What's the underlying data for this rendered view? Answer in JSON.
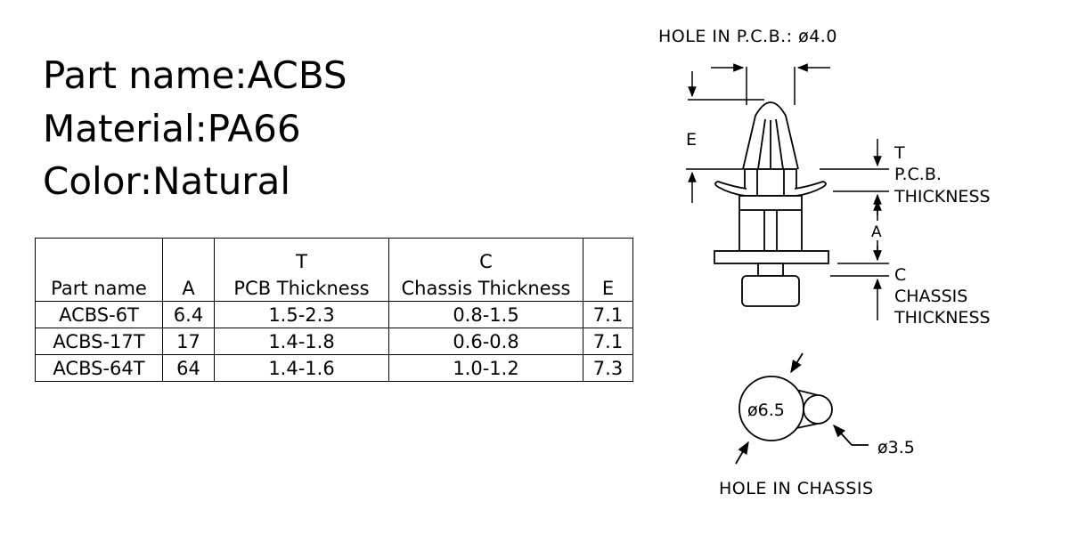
{
  "spec": {
    "part_name": "Part name:ACBS",
    "material": "Material:PA66",
    "color": "Color:Natural"
  },
  "table": {
    "headers": [
      {
        "top": "",
        "label": "Part name"
      },
      {
        "top": "",
        "label": "A"
      },
      {
        "top": "T",
        "label": "PCB Thickness"
      },
      {
        "top": "C",
        "label": "Chassis Thickness"
      },
      {
        "top": "",
        "label": "E"
      }
    ],
    "rows": [
      [
        "ACBS-6T",
        "6.4",
        "1.5-2.3",
        "0.8-1.5",
        "7.1"
      ],
      [
        "ACBS-17T",
        "17",
        "1.4-1.8",
        "0.6-0.8",
        "7.1"
      ],
      [
        "ACBS-64T",
        "64",
        "1.4-1.6",
        "1.0-1.2",
        "7.3"
      ]
    ]
  },
  "drawing": {
    "hole_pcb": "HOLE  IN  P.C.B.:  ø4.0",
    "label_e": "E",
    "label_t": "T",
    "pcb_thickness_1": "P.C.B.",
    "pcb_thickness_2": "THICKNESS",
    "label_a": "A",
    "label_c": "C",
    "chassis_thickness_1": "CHASSIS",
    "chassis_thickness_2": "THICKNESS",
    "dia_large": "ø6.5",
    "dia_small": "ø3.5",
    "hole_chassis": "HOLE  IN  CHASSIS"
  }
}
